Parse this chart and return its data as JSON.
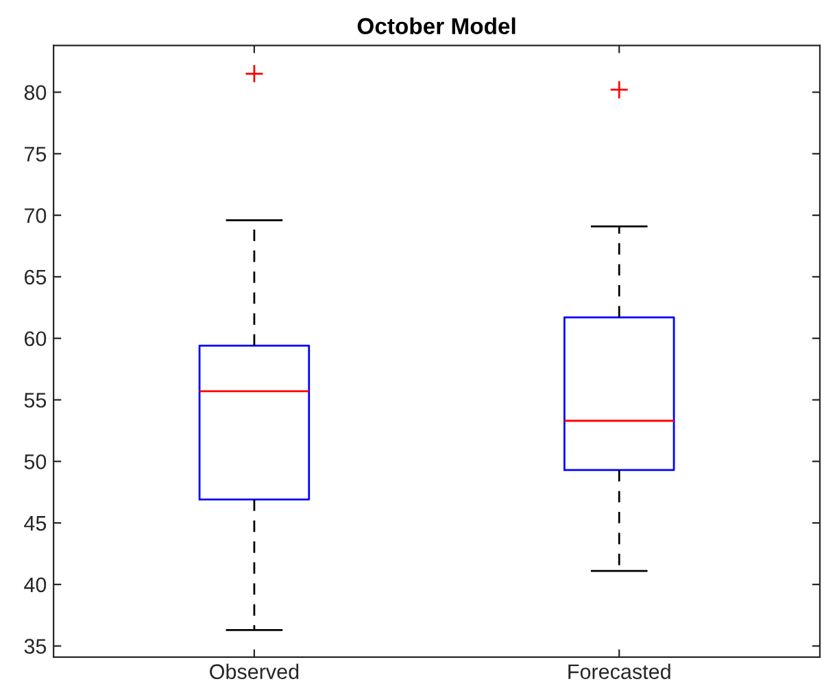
{
  "chart_data": {
    "type": "box",
    "title": "October Model",
    "categories": [
      "Observed",
      "Forecasted"
    ],
    "boxes": [
      {
        "low": 36.3,
        "q1": 46.9,
        "median": 55.7,
        "q3": 59.4,
        "high": 69.6,
        "outliers": [
          81.5
        ]
      },
      {
        "low": 41.1,
        "q1": 49.3,
        "median": 53.3,
        "q3": 61.7,
        "high": 69.1,
        "outliers": [
          80.2
        ]
      }
    ],
    "color": "#0000ff",
    "marker": "cross",
    "line_style": "dashed",
    "ylim": [
      34.1,
      83.8
    ],
    "yticks": [
      35,
      40,
      45,
      50,
      55,
      60,
      65,
      70,
      75,
      80
    ],
    "grid": false
  }
}
